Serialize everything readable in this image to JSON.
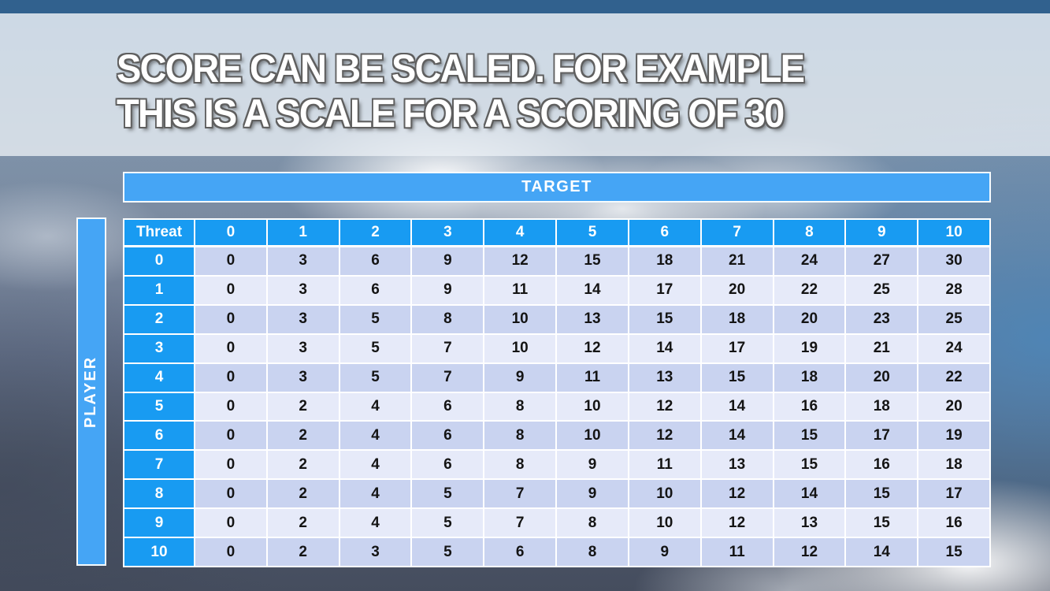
{
  "slide": {
    "title_line1": "SCORE CAN BE SCALED. FOR EXAMPLE",
    "title_line2": "THIS IS A SCALE FOR A SCORING OF 30"
  },
  "table": {
    "target_label": "TARGET",
    "player_label": "PLAYER",
    "corner_label": "Threat",
    "column_headers": [
      "0",
      "1",
      "2",
      "3",
      "4",
      "5",
      "6",
      "7",
      "8",
      "9",
      "10"
    ],
    "row_headers": [
      "0",
      "1",
      "2",
      "3",
      "4",
      "5",
      "6",
      "7",
      "8",
      "9",
      "10"
    ],
    "rows": [
      [
        0,
        3,
        6,
        9,
        12,
        15,
        18,
        21,
        24,
        27,
        30
      ],
      [
        0,
        3,
        6,
        9,
        11,
        14,
        17,
        20,
        22,
        25,
        28
      ],
      [
        0,
        3,
        5,
        8,
        10,
        13,
        15,
        18,
        20,
        23,
        25
      ],
      [
        0,
        3,
        5,
        7,
        10,
        12,
        14,
        17,
        19,
        21,
        24
      ],
      [
        0,
        3,
        5,
        7,
        9,
        11,
        13,
        15,
        18,
        20,
        22
      ],
      [
        0,
        2,
        4,
        6,
        8,
        10,
        12,
        14,
        16,
        18,
        20
      ],
      [
        0,
        2,
        4,
        6,
        8,
        10,
        12,
        14,
        15,
        17,
        19
      ],
      [
        0,
        2,
        4,
        6,
        8,
        9,
        11,
        13,
        15,
        16,
        18
      ],
      [
        0,
        2,
        4,
        5,
        7,
        9,
        10,
        12,
        14,
        15,
        17
      ],
      [
        0,
        2,
        4,
        5,
        7,
        8,
        10,
        12,
        13,
        15,
        16
      ],
      [
        0,
        2,
        3,
        5,
        6,
        8,
        9,
        11,
        12,
        14,
        15
      ]
    ]
  },
  "colors": {
    "header_blue": "#189bf2",
    "bar_blue": "#45a5f5",
    "row_even": "#c9d3f0",
    "row_odd": "#e6eaf9",
    "top_bar": "#31618e",
    "title_text": "#ffffff"
  }
}
